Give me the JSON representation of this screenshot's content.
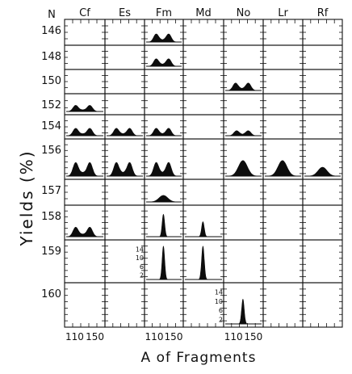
{
  "chart_data": {
    "type": "area",
    "xlabel": "A of Fragments",
    "ylabel": "Yields (%)",
    "row_header": "N",
    "columns": [
      "Cf",
      "Es",
      "Fm",
      "Md",
      "No",
      "Lr",
      "Rf"
    ],
    "rows": [
      "146",
      "148",
      "150",
      "152",
      "154",
      "156",
      "157",
      "158",
      "159",
      "160"
    ],
    "x_ticks": [
      "110",
      "150"
    ],
    "x_range": [
      95,
      165
    ],
    "y_scale_labels": [
      "14",
      "10",
      "6",
      "2"
    ],
    "distributions": [
      {
        "element": "Fm",
        "N": "146",
        "shape": "asymmetric",
        "peak_A": [
          114,
          140
        ],
        "peak_yield": 6
      },
      {
        "element": "Fm",
        "N": "148",
        "shape": "asymmetric",
        "peak_A": [
          114,
          140
        ],
        "peak_yield": 6
      },
      {
        "element": "No",
        "N": "150",
        "shape": "asymmetric",
        "peak_A": [
          114,
          140
        ],
        "peak_yield": 6
      },
      {
        "element": "Cf",
        "N": "152",
        "shape": "asymmetric",
        "peak_A": [
          112,
          140
        ],
        "peak_yield": 6
      },
      {
        "element": "Cf",
        "N": "154",
        "shape": "asymmetric",
        "peak_A": [
          112,
          140
        ],
        "peak_yield": 6
      },
      {
        "element": "Es",
        "N": "154",
        "shape": "asymmetric",
        "peak_A": [
          113,
          140
        ],
        "peak_yield": 6
      },
      {
        "element": "Fm",
        "N": "154",
        "shape": "asymmetric",
        "peak_A": [
          114,
          140
        ],
        "peak_yield": 6
      },
      {
        "element": "No",
        "N": "154",
        "shape": "asymmetric",
        "peak_A": [
          116,
          140
        ],
        "peak_yield": 4
      },
      {
        "element": "Cf",
        "N": "156",
        "shape": "asymmetric",
        "peak_A": [
          112,
          140
        ],
        "peak_yield": 6
      },
      {
        "element": "Es",
        "N": "156",
        "shape": "asymmetric",
        "peak_A": [
          113,
          140
        ],
        "peak_yield": 6
      },
      {
        "element": "Fm",
        "N": "156",
        "shape": "asymmetric",
        "peak_A": [
          114,
          140
        ],
        "peak_yield": 6
      },
      {
        "element": "No",
        "N": "156",
        "shape": "broad",
        "peak_A": [
          129
        ],
        "peak_yield": 7
      },
      {
        "element": "Lr",
        "N": "156",
        "shape": "broad",
        "peak_A": [
          129
        ],
        "peak_yield": 7
      },
      {
        "element": "Rf",
        "N": "156",
        "shape": "broad",
        "peak_A": [
          130
        ],
        "peak_yield": 4
      },
      {
        "element": "Fm",
        "N": "157",
        "shape": "broad",
        "peak_A": [
          129
        ],
        "peak_yield": 5
      },
      {
        "element": "Cf",
        "N": "158",
        "shape": "asymmetric",
        "peak_A": [
          112,
          140
        ],
        "peak_yield": 5
      },
      {
        "element": "Fm",
        "N": "158",
        "shape": "symmetric",
        "peak_A": [
          129
        ],
        "peak_yield": 12
      },
      {
        "element": "Md",
        "N": "158",
        "shape": "symmetric",
        "peak_A": [
          129
        ],
        "peak_yield": 8
      },
      {
        "element": "Fm",
        "N": "159",
        "shape": "symmetric",
        "peak_A": [
          129
        ],
        "peak_yield": 14
      },
      {
        "element": "Md",
        "N": "159",
        "shape": "symmetric",
        "peak_A": [
          129
        ],
        "peak_yield": 14
      },
      {
        "element": "No",
        "N": "160",
        "shape": "symmetric",
        "peak_A": [
          129
        ],
        "peak_yield": 10
      }
    ]
  }
}
